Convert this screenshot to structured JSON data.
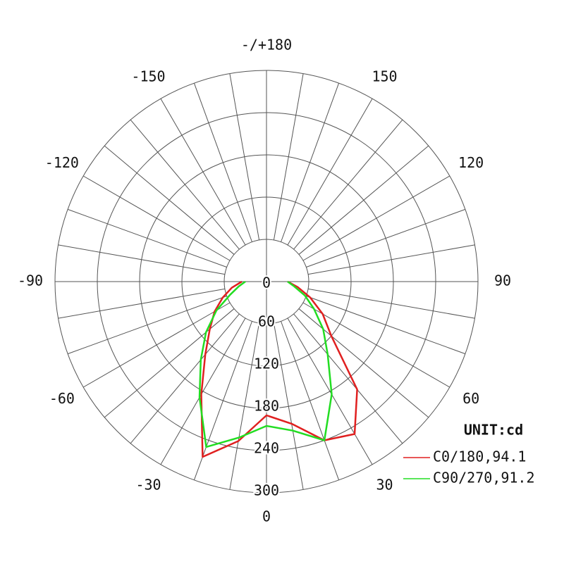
{
  "chart_data": {
    "type": "polar",
    "unit_label": "UNIT:cd",
    "x": [
      -90,
      -80,
      -70,
      -60,
      -50,
      -40,
      -30,
      -20,
      -10,
      0,
      10,
      20,
      30,
      40,
      50,
      60,
      70,
      80,
      90
    ],
    "xticks": [
      0,
      30,
      60,
      90,
      120,
      150,
      {
        "value": 180,
        "label": "-/+180"
      },
      -150,
      -120,
      -90,
      -60,
      -30
    ],
    "rlim": [
      0,
      300
    ],
    "rticks": [
      0,
      60,
      120,
      180,
      240,
      300
    ],
    "grid": true,
    "series": [
      {
        "name": "C0/180,94.1",
        "color": "#e02020",
        "values": [
          35,
          50,
          66,
          85,
          105,
          135,
          185,
          265,
          230,
          190,
          205,
          240,
          250,
          200,
          120,
          92,
          66,
          45,
          30
        ]
      },
      {
        "name": "C90/270,91.2",
        "color": "#22dd22",
        "values": [
          30,
          40,
          55,
          82,
          112,
          145,
          190,
          250,
          225,
          205,
          215,
          240,
          185,
          135,
          105,
          78,
          58,
          40,
          30
        ]
      }
    ]
  }
}
